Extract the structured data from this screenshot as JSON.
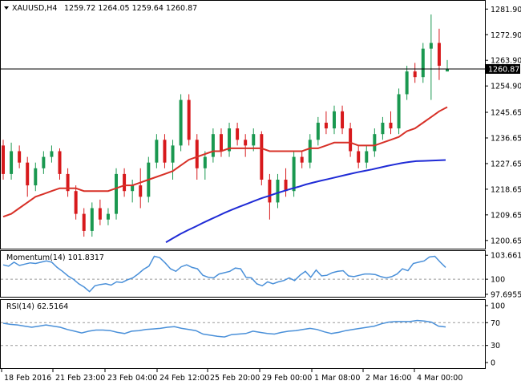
{
  "main_panel": {
    "symbol": "XAUUSD,H4",
    "ohlc": "1259.72 1264.05 1259.64 1260.87",
    "last_price_label": "1260.87",
    "hline_price": 1260.87,
    "price_ticks": [
      "1281.90",
      "1272.90",
      "1263.90",
      "1254.90",
      "1245.65",
      "1236.65",
      "1227.65",
      "1218.65",
      "1209.65",
      "1200.65"
    ],
    "colors": {
      "up": "#1a9850",
      "down": "#d7191c",
      "sma_short": "#d73027",
      "sma_long": "#1f2bd6",
      "line": "#4a90d9"
    }
  },
  "momentum_panel": {
    "label": "Momentum(14) 101.8317",
    "ticks": [
      "103.6612",
      "100",
      "97.6955"
    ]
  },
  "rsi_panel": {
    "label": "RSI(14) 62.5164",
    "ticks": [
      "100",
      "70",
      "30",
      "0"
    ]
  },
  "x_axis": {
    "labels": [
      "18 Feb 2016",
      "21 Feb 23:00",
      "23 Feb 04:00",
      "24 Feb 12:00",
      "25 Feb 20:00",
      "29 Feb 00:00",
      "1 Mar 08:00",
      "2 Mar 16:00",
      "4 Mar 00:00"
    ]
  },
  "chart_data": {
    "type": "line",
    "candles": [
      [
        1234,
        1236,
        1222,
        1224
      ],
      [
        1224,
        1235,
        1222,
        1232
      ],
      [
        1232,
        1234,
        1226,
        1228
      ],
      [
        1228,
        1230,
        1216,
        1220
      ],
      [
        1220,
        1228,
        1218,
        1226
      ],
      [
        1226,
        1232,
        1224,
        1230
      ],
      [
        1230,
        1234,
        1228,
        1232
      ],
      [
        1232,
        1233,
        1222,
        1224
      ],
      [
        1224,
        1226,
        1216,
        1218
      ],
      [
        1218,
        1220,
        1208,
        1210
      ],
      [
        1210,
        1212,
        1202,
        1204
      ],
      [
        1204,
        1214,
        1202,
        1212
      ],
      [
        1212,
        1215,
        1206,
        1208
      ],
      [
        1208,
        1212,
        1206,
        1210
      ],
      [
        1210,
        1226,
        1208,
        1224
      ],
      [
        1224,
        1226,
        1216,
        1218
      ],
      [
        1218,
        1222,
        1214,
        1220
      ],
      [
        1220,
        1226,
        1212,
        1216
      ],
      [
        1216,
        1230,
        1214,
        1228
      ],
      [
        1228,
        1238,
        1226,
        1236
      ],
      [
        1236,
        1238,
        1226,
        1228
      ],
      [
        1228,
        1236,
        1222,
        1234
      ],
      [
        1234,
        1252,
        1232,
        1250
      ],
      [
        1250,
        1252,
        1234,
        1236
      ],
      [
        1236,
        1238,
        1222,
        1226
      ],
      [
        1226,
        1232,
        1222,
        1230
      ],
      [
        1230,
        1240,
        1228,
        1238
      ],
      [
        1238,
        1240,
        1230,
        1232
      ],
      [
        1232,
        1242,
        1230,
        1240
      ],
      [
        1240,
        1242,
        1234,
        1236
      ],
      [
        1236,
        1238,
        1230,
        1234
      ],
      [
        1234,
        1240,
        1232,
        1238
      ],
      [
        1238,
        1239,
        1220,
        1222
      ],
      [
        1222,
        1224,
        1208,
        1214
      ],
      [
        1214,
        1224,
        1212,
        1222
      ],
      [
        1222,
        1226,
        1216,
        1218
      ],
      [
        1218,
        1232,
        1216,
        1230
      ],
      [
        1230,
        1232,
        1226,
        1228
      ],
      [
        1228,
        1238,
        1226,
        1236
      ],
      [
        1236,
        1244,
        1234,
        1242
      ],
      [
        1242,
        1246,
        1238,
        1240
      ],
      [
        1240,
        1248,
        1238,
        1246
      ],
      [
        1246,
        1248,
        1238,
        1240
      ],
      [
        1240,
        1242,
        1230,
        1232
      ],
      [
        1232,
        1234,
        1226,
        1228
      ],
      [
        1228,
        1234,
        1226,
        1232
      ],
      [
        1232,
        1240,
        1230,
        1238
      ],
      [
        1238,
        1244,
        1236,
        1242
      ],
      [
        1242,
        1246,
        1238,
        1240
      ],
      [
        1240,
        1254,
        1238,
        1252
      ],
      [
        1252,
        1262,
        1250,
        1260
      ],
      [
        1260,
        1263,
        1256,
        1258
      ],
      [
        1258,
        1270,
        1256,
        1268
      ],
      [
        1268,
        1280,
        1250,
        1270
      ],
      [
        1270,
        1275,
        1257,
        1262
      ],
      [
        1260,
        1264,
        1260,
        1261
      ]
    ],
    "sma_short": [
      1209,
      1210,
      1212,
      1214,
      1216,
      1217,
      1218,
      1219,
      1219,
      1219,
      1218,
      1218,
      1218,
      1218,
      1219,
      1220,
      1220,
      1221,
      1222,
      1223,
      1224,
      1225,
      1227,
      1229,
      1230,
      1231,
      1232,
      1232,
      1233,
      1233,
      1233,
      1233,
      1233,
      1232,
      1232,
      1232,
      1232,
      1232,
      1233,
      1233,
      1234,
      1235,
      1235,
      1235,
      1234,
      1234,
      1234,
      1235,
      1236,
      1237,
      1239,
      1240,
      1242,
      1244,
      1246,
      1247.5
    ],
    "sma_long_start_index": 17,
    "sma_long": [
      1200,
      1201.5,
      1203,
      1204.3,
      1205.5,
      1206.8,
      1208,
      1209.2,
      1210.4,
      1211.5,
      1212.5,
      1213.5,
      1214.5,
      1215.5,
      1216.3,
      1217.2,
      1218,
      1218.8,
      1219.5,
      1220.3,
      1221,
      1221.6,
      1222.2,
      1222.8,
      1223.4,
      1224,
      1224.6,
      1225.1,
      1225.6,
      1226.2,
      1226.8,
      1227.3,
      1227.8,
      1228.2,
      1228.5,
      1228.6,
      1228.7,
      1228.8,
      1228.9
    ],
    "momentum": [
      102.2,
      102,
      102.6,
      102.1,
      102.3,
      102.5,
      102.4,
      102.6,
      102.8,
      102.6,
      101.8,
      101.2,
      100.5,
      100,
      99.3,
      98.8,
      98.1,
      99,
      99.2,
      99.3,
      99.1,
      99.6,
      99.5,
      99.9,
      100.2,
      100.8,
      101.5,
      102,
      103.5,
      103.3,
      102.5,
      101.6,
      101.2,
      101.9,
      102.2,
      101.8,
      101.6,
      100.6,
      100.3,
      100.2,
      100.8,
      101,
      101.2,
      101.7,
      101.6,
      100.3,
      100.2,
      99.3,
      99,
      99.6,
      99.3,
      99.6,
      99.8,
      100.2,
      99.8,
      100.6,
      101.2,
      100.3,
      101.4,
      100.5,
      100.6,
      101,
      101.2,
      101.3,
      100.5,
      100.4,
      100.6,
      100.8,
      100.8,
      100.7,
      100.4,
      100.2,
      100.4,
      100.8,
      101.6,
      101.3,
      102.4,
      102.6,
      102.8,
      103.4,
      103.5,
      102.6,
      101.8
    ],
    "rsi": [
      69,
      67,
      66,
      64,
      62,
      64,
      66,
      64,
      62,
      58,
      55,
      52,
      55,
      57,
      57,
      56,
      53,
      51,
      55,
      56,
      58,
      59,
      60,
      62,
      63,
      60,
      58,
      56,
      50,
      48,
      46,
      45,
      49,
      50,
      51,
      55,
      53,
      51,
      50,
      53,
      55,
      56,
      58,
      60,
      58,
      54,
      51,
      53,
      56,
      58,
      60,
      62,
      64,
      68,
      71,
      72,
      72,
      72,
      74,
      73,
      71,
      64,
      62.5
    ],
    "price_range": [
      1197.5,
      1284.8
    ],
    "momentum_range": [
      97.2,
      104.3
    ],
    "rsi_range": [
      0,
      100
    ],
    "rsi_levels": [
      70,
      30
    ],
    "momentum_level": 100
  }
}
